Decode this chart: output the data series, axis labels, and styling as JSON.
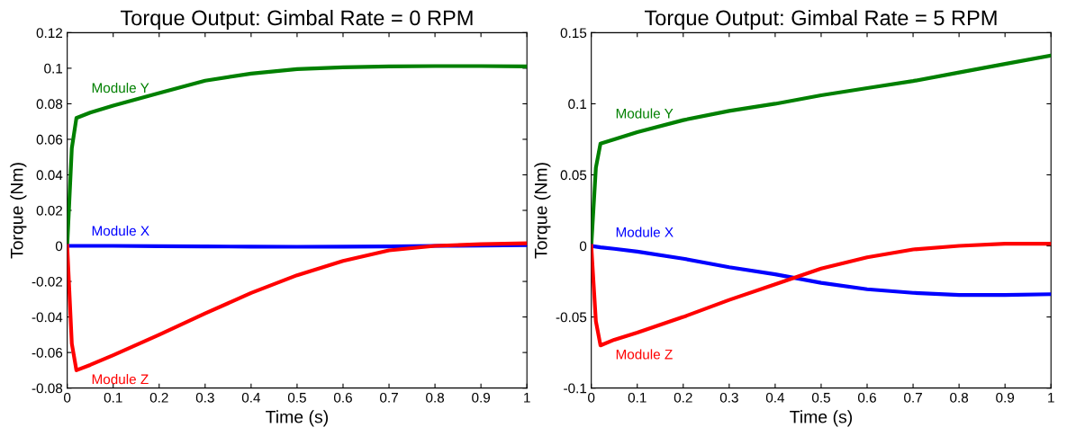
{
  "chart_data": [
    {
      "type": "line",
      "title": "Torque Output: Gimbal Rate = 0 RPM",
      "xlabel": "Time (s)",
      "ylabel": "Torque (Nm)",
      "x": [
        0,
        0.01,
        0.02,
        0.05,
        0.1,
        0.2,
        0.3,
        0.4,
        0.5,
        0.6,
        0.7,
        0.8,
        0.9,
        1.0
      ],
      "series": [
        {
          "name": "Module Y",
          "color": "#008000",
          "values": [
            0,
            0.055,
            0.072,
            0.075,
            0.079,
            0.086,
            0.093,
            0.097,
            0.0995,
            0.1005,
            0.101,
            0.1012,
            0.1012,
            0.101
          ]
        },
        {
          "name": "Module X",
          "color": "#0000ff",
          "values": [
            0,
            0,
            0,
            0,
            0,
            -0.0002,
            -0.0003,
            -0.0004,
            -0.0005,
            -0.0004,
            -0.0003,
            0,
            0.0002,
            0.0005
          ]
        },
        {
          "name": "Module Z",
          "color": "#ff0000",
          "values": [
            0,
            -0.055,
            -0.07,
            -0.067,
            -0.0615,
            -0.05,
            -0.038,
            -0.0265,
            -0.0165,
            -0.0085,
            -0.0025,
            0.0,
            0.001,
            0.0015
          ]
        }
      ],
      "xlim": [
        0,
        1
      ],
      "xticks": [
        0,
        0.1,
        0.2,
        0.3,
        0.4,
        0.5,
        0.6,
        0.7,
        0.8,
        0.9,
        1
      ],
      "ylim": [
        -0.08,
        0.12
      ],
      "yticks": [
        -0.08,
        -0.06,
        -0.04,
        -0.02,
        0,
        0.02,
        0.04,
        0.06,
        0.08,
        0.1,
        0.12
      ],
      "grid": false,
      "legend": false,
      "marker": "none",
      "line_style": "solid"
    },
    {
      "type": "line",
      "title": "Torque Output: Gimbal Rate = 5 RPM",
      "xlabel": "Time (s)",
      "ylabel": "Torque (Nm)",
      "x": [
        0,
        0.01,
        0.02,
        0.05,
        0.1,
        0.2,
        0.3,
        0.4,
        0.5,
        0.6,
        0.7,
        0.8,
        0.9,
        1.0
      ],
      "series": [
        {
          "name": "Module Y",
          "color": "#008000",
          "values": [
            0,
            0.055,
            0.072,
            0.075,
            0.08,
            0.0885,
            0.095,
            0.1,
            0.106,
            0.111,
            0.116,
            0.122,
            0.128,
            0.134
          ]
        },
        {
          "name": "Module X",
          "color": "#0000ff",
          "values": [
            0,
            -0.0005,
            -0.001,
            -0.002,
            -0.004,
            -0.009,
            -0.015,
            -0.02,
            -0.026,
            -0.0305,
            -0.033,
            -0.0345,
            -0.0345,
            -0.034
          ]
        },
        {
          "name": "Module Z",
          "color": "#ff0000",
          "values": [
            0,
            -0.053,
            -0.07,
            -0.066,
            -0.061,
            -0.05,
            -0.038,
            -0.027,
            -0.016,
            -0.008,
            -0.0025,
            0,
            0.0015,
            0.0015
          ]
        }
      ],
      "xlim": [
        0,
        1
      ],
      "xticks": [
        0,
        0.1,
        0.2,
        0.3,
        0.4,
        0.5,
        0.6,
        0.7,
        0.8,
        0.9,
        1
      ],
      "ylim": [
        -0.1,
        0.15
      ],
      "yticks": [
        -0.1,
        -0.05,
        0,
        0.05,
        0.1,
        0.15
      ],
      "grid": false,
      "legend": false,
      "marker": "none",
      "line_style": "solid"
    }
  ]
}
